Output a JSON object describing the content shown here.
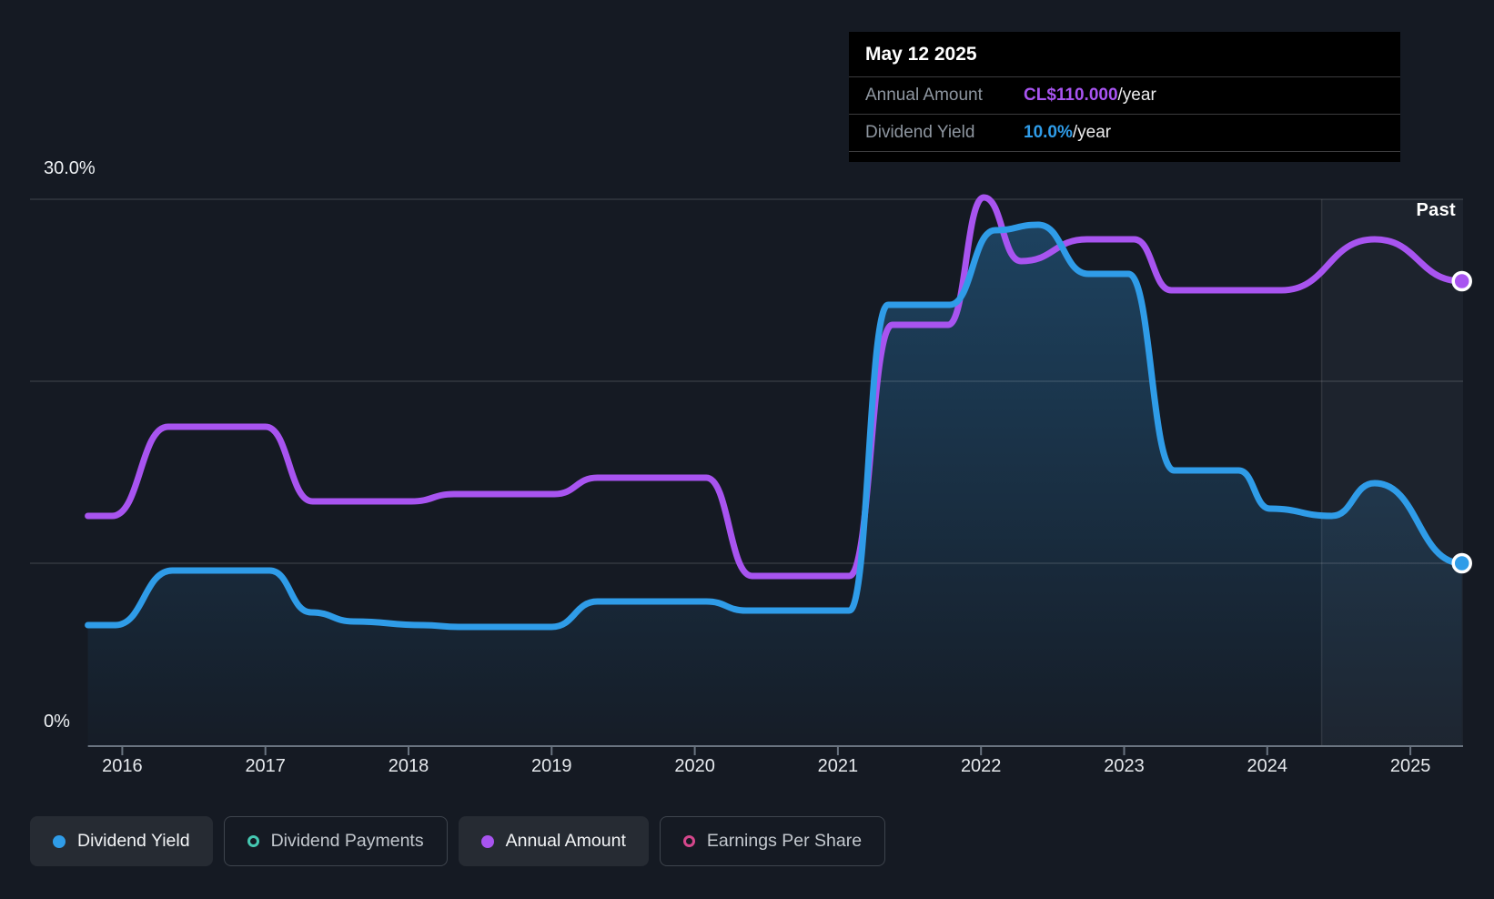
{
  "page": {
    "background": "#151a23"
  },
  "tooltip": {
    "date": "May 12 2025",
    "rows": [
      {
        "label": "Annual Amount",
        "value": "CL$110.000",
        "suffix": "/year",
        "color_key": "purple"
      },
      {
        "label": "Dividend Yield",
        "value": "10.0%",
        "suffix": "/year",
        "color_key": "blue"
      }
    ]
  },
  "colors": {
    "blue": "#2f9ce8",
    "purple": "#a854f0",
    "teal": "#45c8b2",
    "pink": "#d5478c",
    "area_fill_rgb": "47,156,232",
    "grid": "rgba(255,255,255,0.13)",
    "axis": "#6a7480",
    "past_band": "rgba(196,215,238,0.05)",
    "past_divider": "rgba(255,255,255,0.10)",
    "tooltip_bg": "#000000",
    "legend_active_bg": "#262b33"
  },
  "axis": {
    "y_top_label": "30.0%",
    "y_zero_label": "0%",
    "x_ticks": [
      "2016",
      "2017",
      "2018",
      "2019",
      "2020",
      "2021",
      "2022",
      "2023",
      "2024",
      "2025"
    ]
  },
  "past_label": "Past",
  "legend": {
    "items": [
      {
        "label": "Dividend Yield",
        "active": true,
        "dot": "filled",
        "color_key": "blue"
      },
      {
        "label": "Dividend Payments",
        "active": false,
        "dot": "ring",
        "color_key": "teal"
      },
      {
        "label": "Annual Amount",
        "active": true,
        "dot": "filled",
        "color_key": "purple"
      },
      {
        "label": "Earnings Per Share",
        "active": false,
        "dot": "ring",
        "color_key": "pink"
      }
    ]
  },
  "chart_data": {
    "type": "line",
    "title": "Dividend history",
    "x_range": [
      2015.76,
      2025.36
    ],
    "y_range": [
      0,
      30
    ],
    "y_unit": "%",
    "gridlines_pct": [
      10,
      20,
      30
    ],
    "x_tick_years": [
      2016,
      2017,
      2018,
      2019,
      2020,
      2021,
      2022,
      2023,
      2024,
      2025
    ],
    "past_region_start": 2024.38,
    "legend_position": "bottom",
    "series": [
      {
        "name": "Dividend Yield",
        "color_key": "blue",
        "style": "line+area",
        "end_marker": true,
        "end_value_label": "10.0%/year",
        "points": [
          [
            2015.76,
            6.6
          ],
          [
            2015.95,
            6.6
          ],
          [
            2016.35,
            9.6
          ],
          [
            2017.03,
            9.6
          ],
          [
            2017.32,
            7.3
          ],
          [
            2017.62,
            6.8
          ],
          [
            2018.1,
            6.6
          ],
          [
            2018.35,
            6.5
          ],
          [
            2019.0,
            6.5
          ],
          [
            2019.32,
            7.9
          ],
          [
            2020.08,
            7.9
          ],
          [
            2020.36,
            7.4
          ],
          [
            2021.08,
            7.4
          ],
          [
            2021.35,
            24.2
          ],
          [
            2021.78,
            24.2
          ],
          [
            2022.1,
            28.3
          ],
          [
            2022.4,
            28.6
          ],
          [
            2022.75,
            25.9
          ],
          [
            2023.03,
            25.9
          ],
          [
            2023.35,
            15.1
          ],
          [
            2023.8,
            15.1
          ],
          [
            2024.02,
            13.0
          ],
          [
            2024.45,
            12.6
          ],
          [
            2024.75,
            14.4
          ],
          [
            2025.36,
            10.0
          ]
        ]
      },
      {
        "name": "Annual Amount",
        "color_key": "purple",
        "style": "line",
        "end_marker": true,
        "end_value_label": "CL$110.000/year",
        "points": [
          [
            2015.76,
            12.6
          ],
          [
            2015.93,
            12.6
          ],
          [
            2016.32,
            17.5
          ],
          [
            2017.0,
            17.5
          ],
          [
            2017.33,
            13.4
          ],
          [
            2018.02,
            13.4
          ],
          [
            2018.32,
            13.8
          ],
          [
            2019.02,
            13.8
          ],
          [
            2019.32,
            14.7
          ],
          [
            2020.08,
            14.7
          ],
          [
            2020.4,
            9.3
          ],
          [
            2021.08,
            9.3
          ],
          [
            2021.38,
            23.1
          ],
          [
            2021.77,
            23.1
          ],
          [
            2022.02,
            30.1
          ],
          [
            2022.28,
            26.6
          ],
          [
            2022.74,
            27.8
          ],
          [
            2023.07,
            27.8
          ],
          [
            2023.33,
            25.0
          ],
          [
            2024.1,
            25.0
          ],
          [
            2024.75,
            27.8
          ],
          [
            2025.36,
            25.5
          ]
        ]
      }
    ]
  }
}
